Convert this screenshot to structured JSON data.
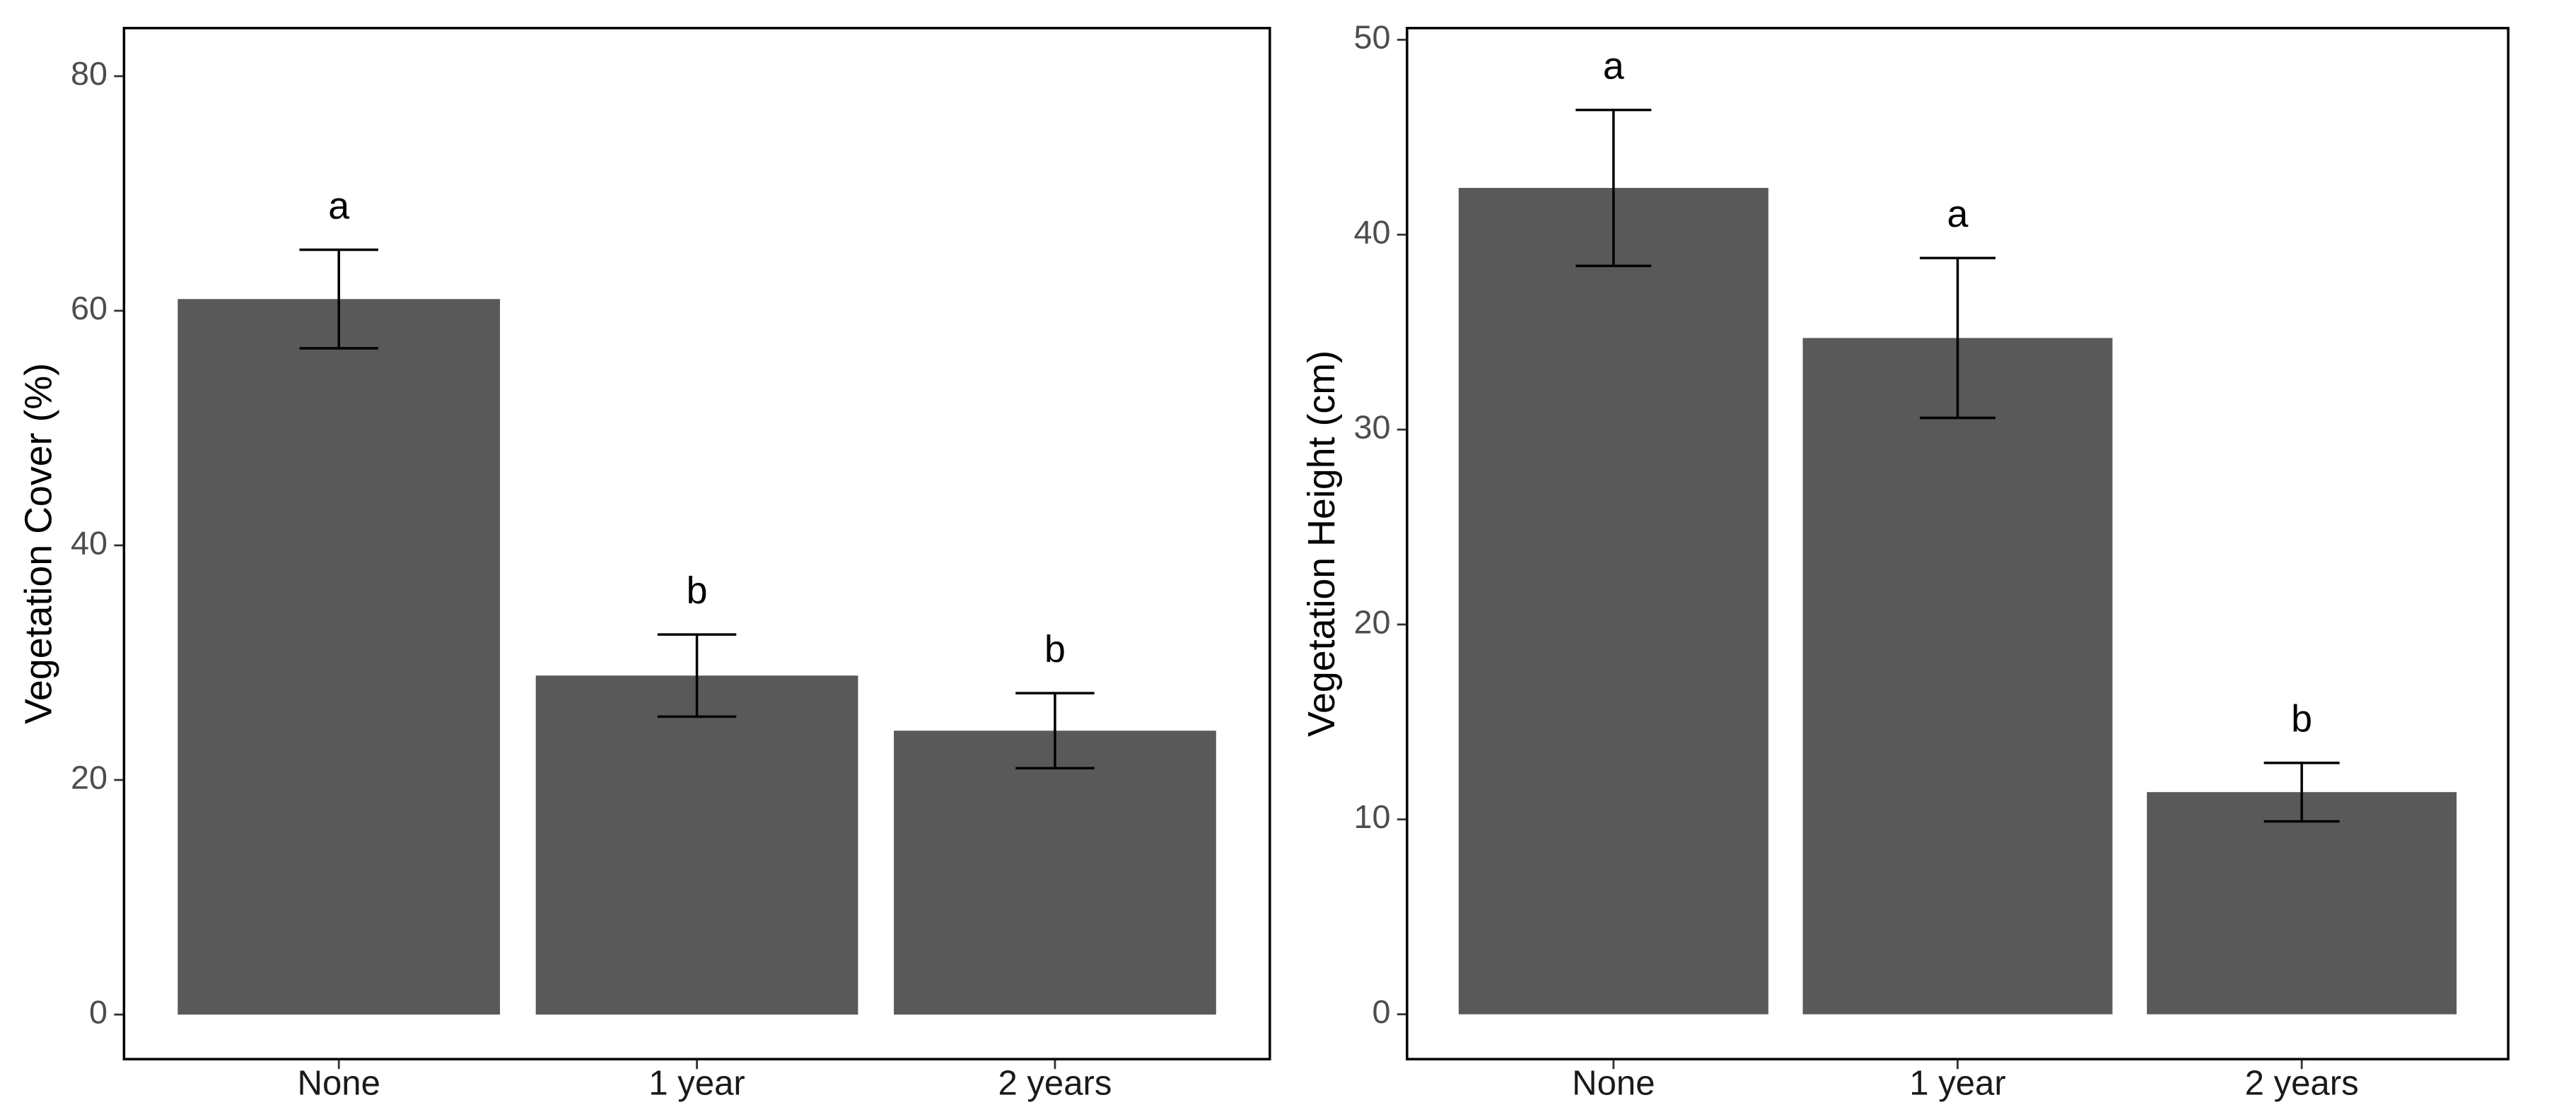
{
  "chart_data": [
    {
      "type": "bar",
      "y_label": "Vegetation Cover (%)",
      "categories": [
        "None",
        "1 year",
        "2 years"
      ],
      "values": [
        61.0,
        28.9,
        24.2
      ],
      "errors": [
        4.2,
        3.5,
        3.2
      ],
      "letters": [
        "a",
        "b",
        "b"
      ],
      "color": "#595959",
      "ylim": [
        -3.8,
        84.1
      ],
      "yticks": [
        0,
        20,
        40,
        60,
        80
      ],
      "grid": false
    },
    {
      "type": "bar",
      "y_label": "Vegetation Height (cm)",
      "categories": [
        "None",
        "1 year",
        "2 years"
      ],
      "values": [
        42.4,
        34.7,
        11.4
      ],
      "errors": [
        4.0,
        4.1,
        1.5
      ],
      "letters": [
        "a",
        "a",
        "b"
      ],
      "color": "#595959",
      "ylim": [
        -2.3,
        50.6
      ],
      "yticks": [
        0,
        10,
        20,
        30,
        40,
        50
      ],
      "grid": false
    }
  ]
}
